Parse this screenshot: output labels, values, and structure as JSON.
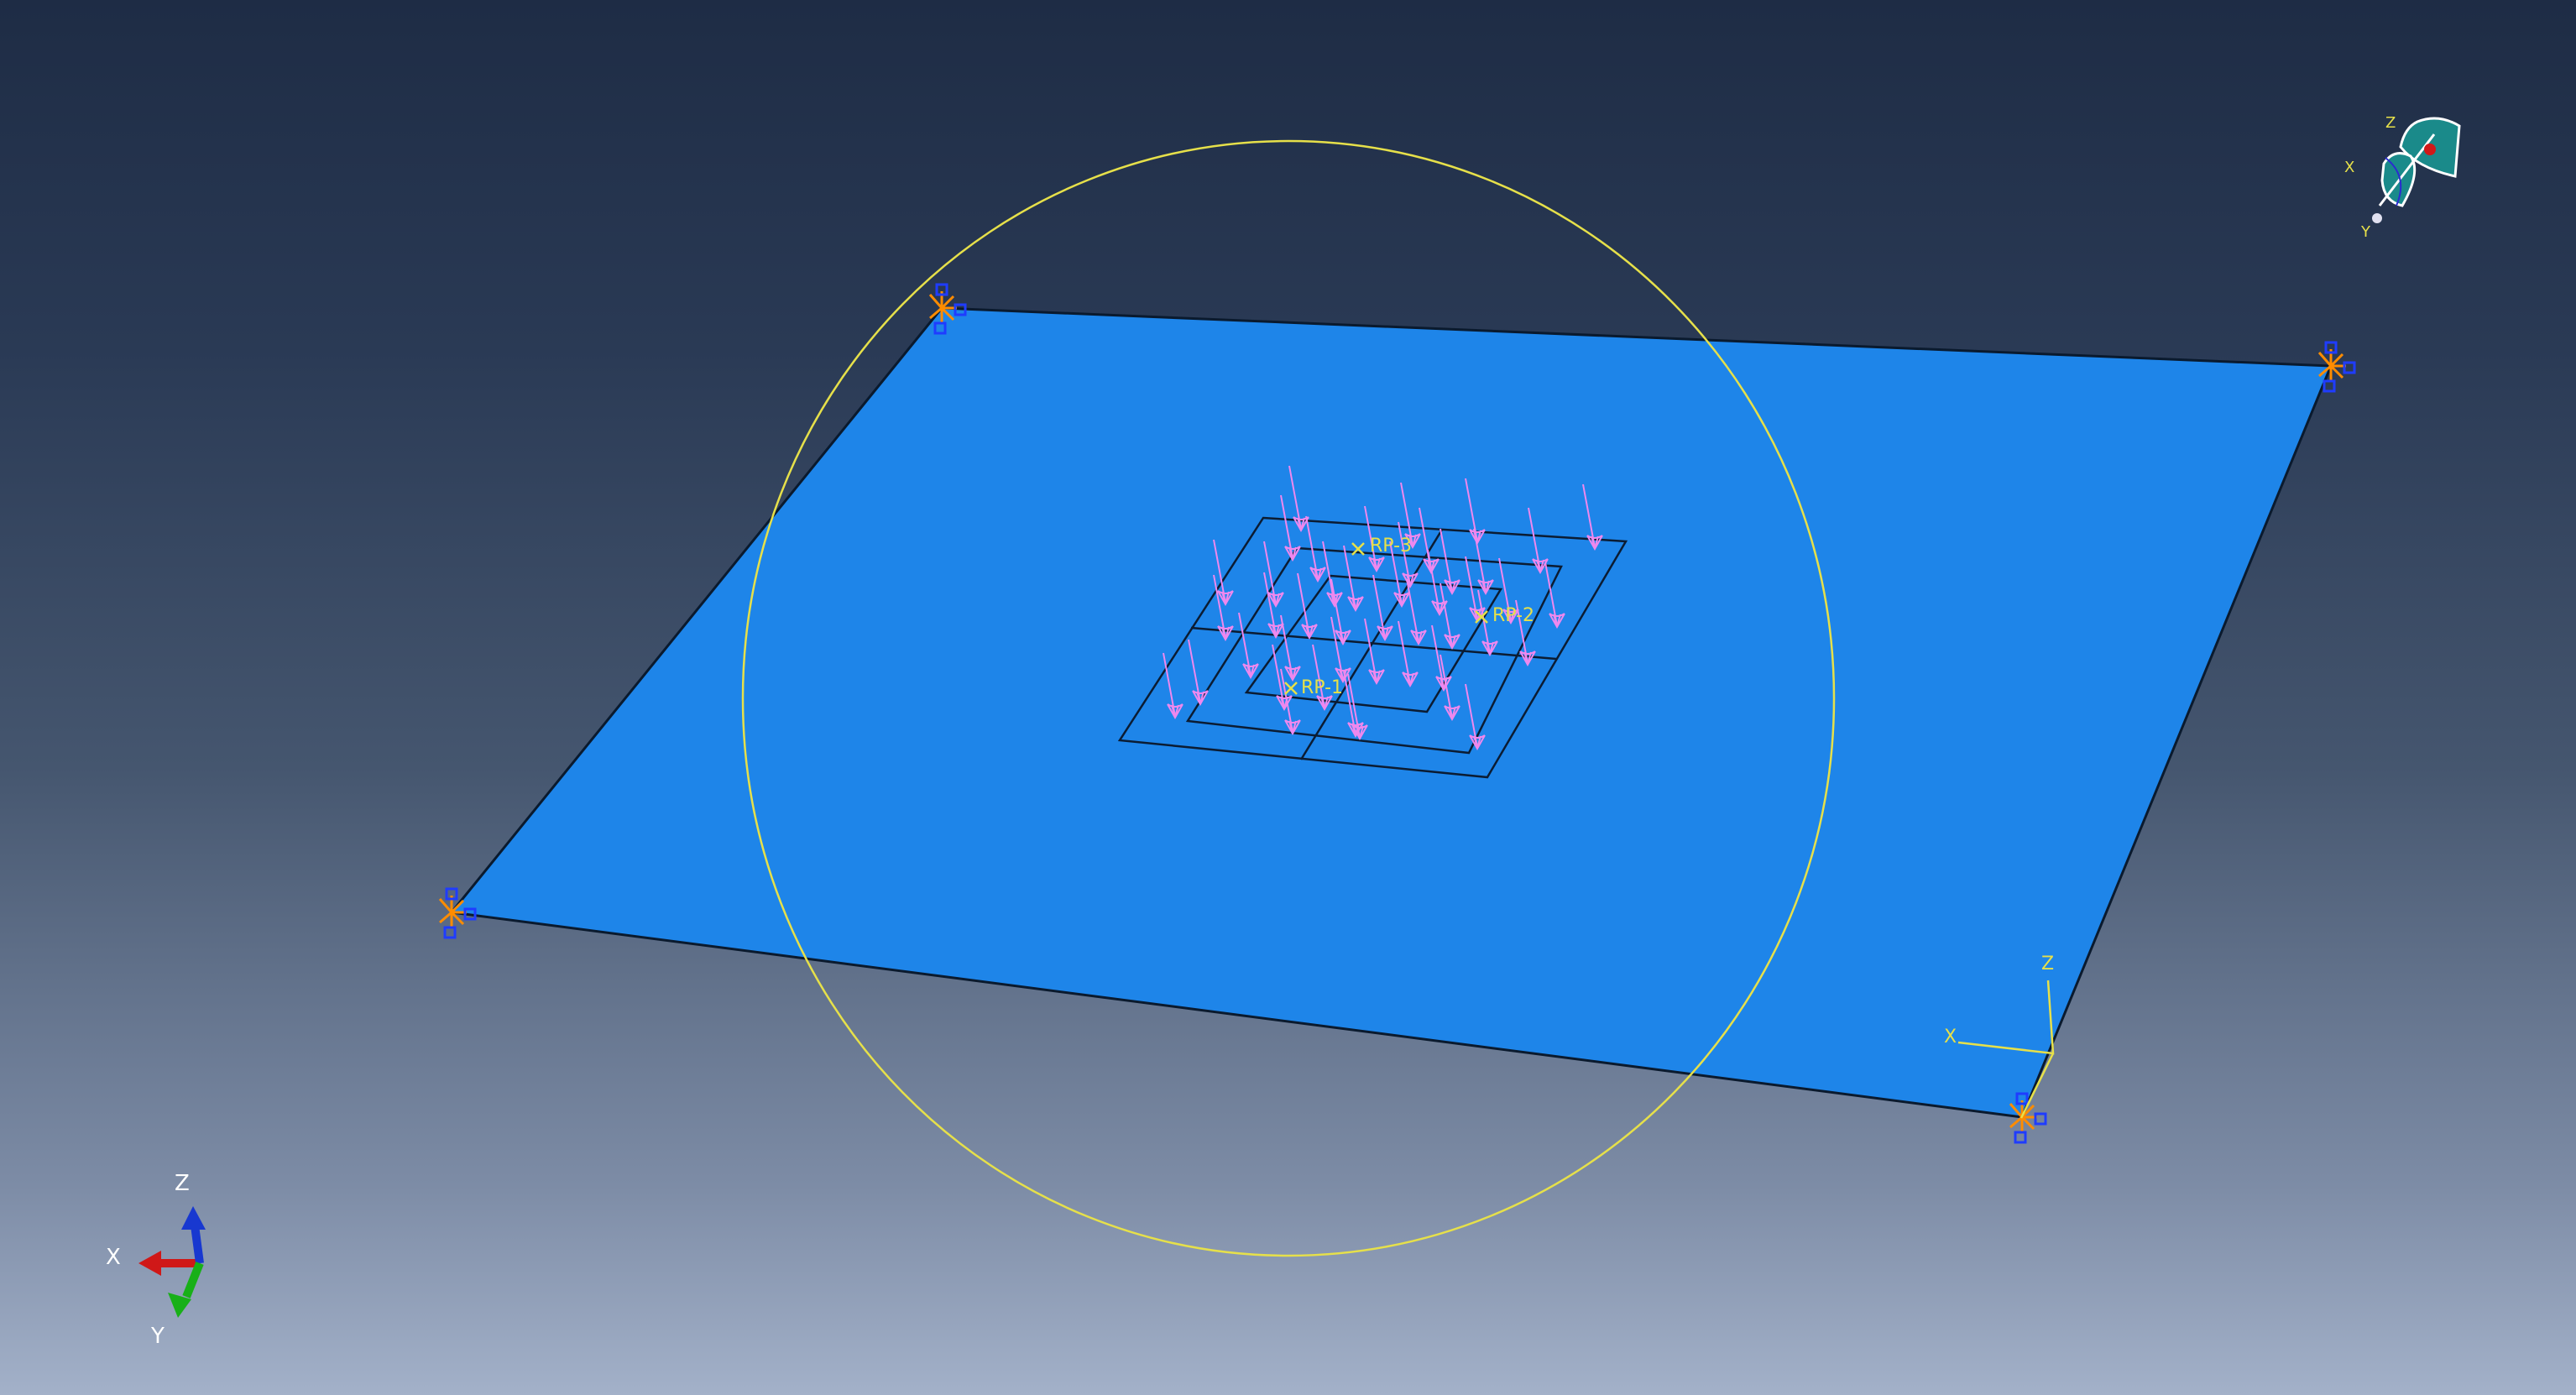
{
  "viewport": {
    "name": "model-viewport"
  },
  "reference_points": [
    {
      "label": "RP-1"
    },
    {
      "label": "RP-2"
    },
    {
      "label": "RP-3"
    }
  ],
  "local_csys": {
    "x_label": "X",
    "z_label": "Z"
  },
  "triad": {
    "x_label": "X",
    "y_label": "Y",
    "z_label": "Z"
  },
  "view_manipulator": {
    "x_label": "X",
    "y_label": "Y",
    "z_label": "Z"
  },
  "colors": {
    "plate": "#1e85e9",
    "plate_edge": "#0a1a2e",
    "load_arrow": "#ee88ee",
    "boundary_condition": "#ff8c00",
    "boundary_marker": "#1f3cff",
    "highlight": "#e6e04a",
    "axis_x": "#d01818",
    "axis_y": "#18b018",
    "axis_z": "#1838d0"
  },
  "icons": {
    "bc": "encastre-bc-icon",
    "load": "pressure-load-arrow-icon",
    "rp": "reference-point-cross-icon"
  }
}
